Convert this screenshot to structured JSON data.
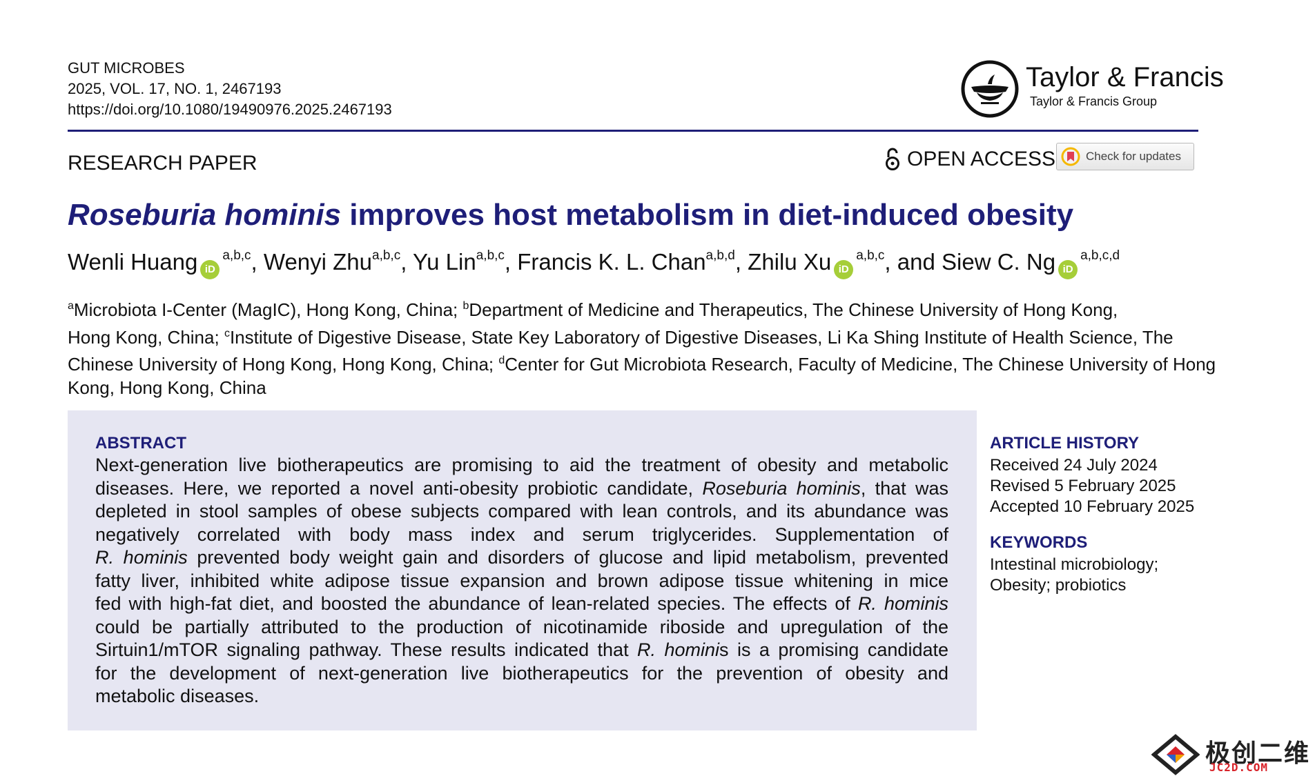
{
  "journal": {
    "name": "GUT MICROBES",
    "issue": "2025, VOL. 17, NO. 1, 2467193",
    "doi": "https://doi.org/10.1080/19490976.2025.2467193"
  },
  "publisher": {
    "name": "Taylor & Francis",
    "group": "Taylor & Francis Group"
  },
  "paper_type": "RESEARCH PAPER",
  "open_access": "OPEN ACCESS",
  "check_updates": "Check for updates",
  "title": {
    "italic": "Roseburia hominis",
    "rest": " improves host metabolism in diet-induced obesity"
  },
  "authors": [
    {
      "name": "Wenli Huang",
      "sup": "a,b,c",
      "orcid": true,
      "sep": ", "
    },
    {
      "name": "Wenyi Zhu",
      "sup": "a,b,c",
      "orcid": false,
      "sep": ", "
    },
    {
      "name": "Yu Lin",
      "sup": "a,b,c",
      "orcid": false,
      "sep": ", "
    },
    {
      "name": "Francis K. L. Chan",
      "sup": "a,b,d",
      "orcid": false,
      "sep": ", "
    },
    {
      "name": "Zhilu Xu",
      "sup": "a,b,c",
      "orcid": true,
      "sep": ", and "
    },
    {
      "name": "Siew C. Ng",
      "sup": "a,b,c,d",
      "orcid": true,
      "sep": ""
    }
  ],
  "orcid_label": "iD",
  "affiliations": {
    "a_sup": "a",
    "a": "Microbiota I-Center (MagIC), Hong Kong, China; ",
    "b_sup": "b",
    "b_1": "Department of Medicine and Therapeutics, The Chinese University of Hong Kong,",
    "b_2": "Hong Kong, China; ",
    "c_sup": "c",
    "c_1": "Institute of Digestive Disease, State Key Laboratory of Digestive Diseases, Li Ka Shing Institute of Health Science, The",
    "c_2": "Chinese University of Hong Kong, Hong Kong, China; ",
    "d_sup": "d",
    "d_1": "Center for Gut Microbiota Research, Faculty of Medicine, The Chinese University of Hong",
    "d_2": "Kong, Hong Kong, China"
  },
  "abstract": {
    "heading": "ABSTRACT",
    "lines": [
      "Next-generation live biotherapeutics are promising to aid the treatment of obesity and metabolic",
      "diseases. Here, we reported a novel anti-obesity probiotic candidate, |Roseburia hominis|, that was",
      "depleted in stool samples of obese subjects compared with lean controls, and its abundance was",
      "negatively correlated with body mass index and serum triglycerides. Supplementation of",
      "|R. hominis| prevented body weight gain and disorders of glucose and lipid metabolism, prevented",
      "fatty liver, inhibited white adipose tissue expansion and brown adipose tissue whitening in mice",
      "fed with high-fat diet, and boosted the abundance of lean-related species. The effects of |R. hominis|",
      "could be partially attributed to the production of nicotinamide riboside and upregulation of the",
      "Sirtuin1/mTOR signaling pathway. These results indicated that |R. homini|s is a promising candidate",
      "for the development of next-generation live biotherapeutics for the prevention of obesity and",
      "metabolic diseases."
    ]
  },
  "article_history": {
    "heading": "ARTICLE HISTORY",
    "received": "Received 24 July 2024",
    "revised": "Revised 5 February 2025",
    "accepted": "Accepted 10 February 2025"
  },
  "keywords": {
    "heading": "KEYWORDS",
    "line1": "Intestinal microbiology;",
    "line2": "Obesity; probiotics"
  },
  "watermark": {
    "cn": "极创二维",
    "en": "JC2D.COM"
  },
  "colors": {
    "accent": "#1e1e78",
    "abstract_bg": "#e6e6f2",
    "orcid": "#a6ce39"
  }
}
